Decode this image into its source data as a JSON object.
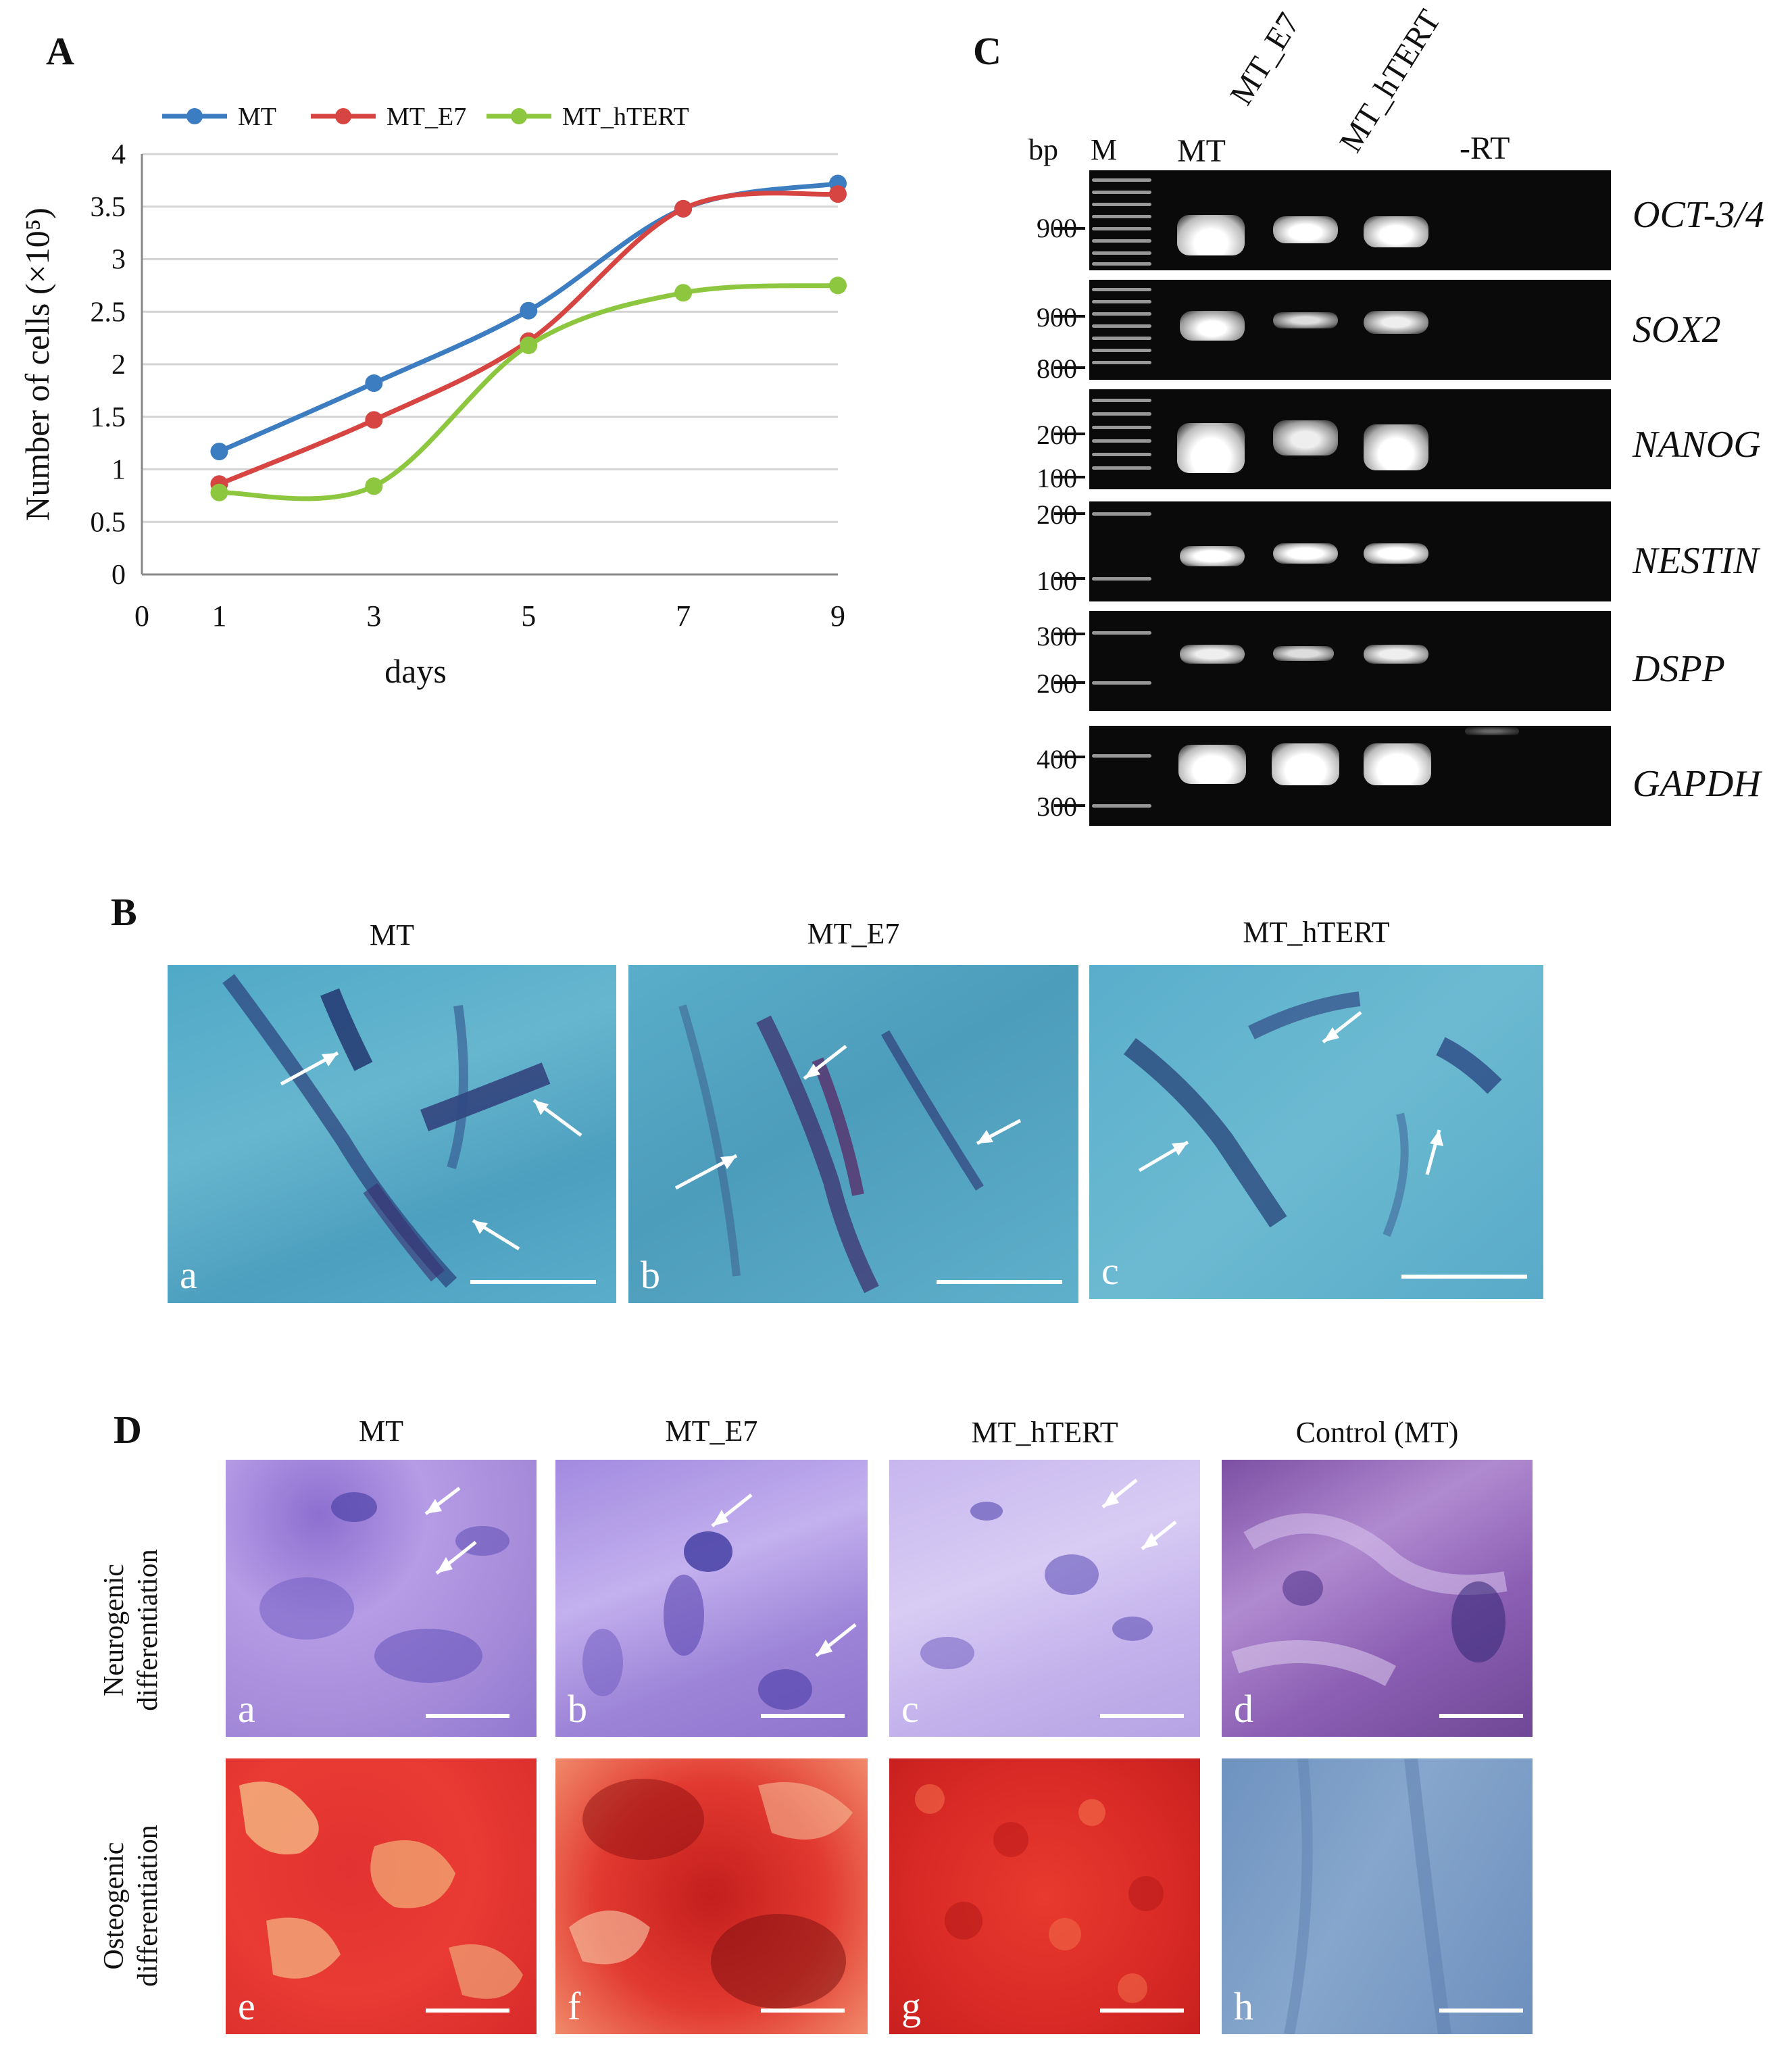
{
  "panels": {
    "a": "A",
    "b": "B",
    "c": "C",
    "d": "D"
  },
  "chart_data": {
    "type": "line",
    "x": [
      1,
      3,
      5,
      7,
      9
    ],
    "series": [
      {
        "name": "MT",
        "color": "#3c7cc0",
        "values": [
          1.17,
          1.82,
          2.51,
          3.48,
          3.72
        ]
      },
      {
        "name": "MT_E7",
        "color": "#d64541",
        "values": [
          0.86,
          1.47,
          2.22,
          3.48,
          3.62
        ]
      },
      {
        "name": "MT_hTERT",
        "color": "#8dc63f",
        "values": [
          0.78,
          0.84,
          2.18,
          2.68,
          2.75
        ]
      }
    ],
    "xlabel": "days",
    "ylabel": "Number of cells (×10⁵)",
    "xticks": [
      "0",
      "1",
      "3",
      "5",
      "7",
      "9"
    ],
    "yticks": [
      "0",
      "0.5",
      "1",
      "1.5",
      "2",
      "2.5",
      "3",
      "3.5",
      "4"
    ],
    "xlim": [
      0,
      9
    ],
    "ylim": [
      0,
      4
    ],
    "grid": "horizontal",
    "legend": "top"
  },
  "gel": {
    "bp_label": "bp",
    "lanes": [
      "M",
      "MT",
      "MT_E7",
      "MT_hTERT",
      "-RT"
    ],
    "rows": [
      {
        "gene": "OCT-3/4",
        "markers": [
          "900"
        ]
      },
      {
        "gene": "SOX2",
        "markers": [
          "900",
          "800"
        ]
      },
      {
        "gene": "NANOG",
        "markers": [
          "200",
          "100"
        ]
      },
      {
        "gene": "NESTIN",
        "markers": [
          "200",
          "100"
        ]
      },
      {
        "gene": "DSPP",
        "markers": [
          "300",
          "200"
        ]
      },
      {
        "gene": "GAPDH",
        "markers": [
          "400",
          "300"
        ]
      }
    ]
  },
  "panel_b": {
    "titles": [
      "MT",
      "MT_E7",
      "MT_hTERT"
    ],
    "letters": [
      "a",
      "b",
      "c"
    ]
  },
  "panel_d": {
    "titles": [
      "MT",
      "MT_E7",
      "MT_hTERT",
      "Control (MT)"
    ],
    "row_labels": [
      [
        "Neurogenic",
        "differentiation"
      ],
      [
        "Osteogenic",
        "differentiation"
      ]
    ],
    "letters": [
      "a",
      "b",
      "c",
      "d",
      "e",
      "f",
      "g",
      "h"
    ]
  }
}
